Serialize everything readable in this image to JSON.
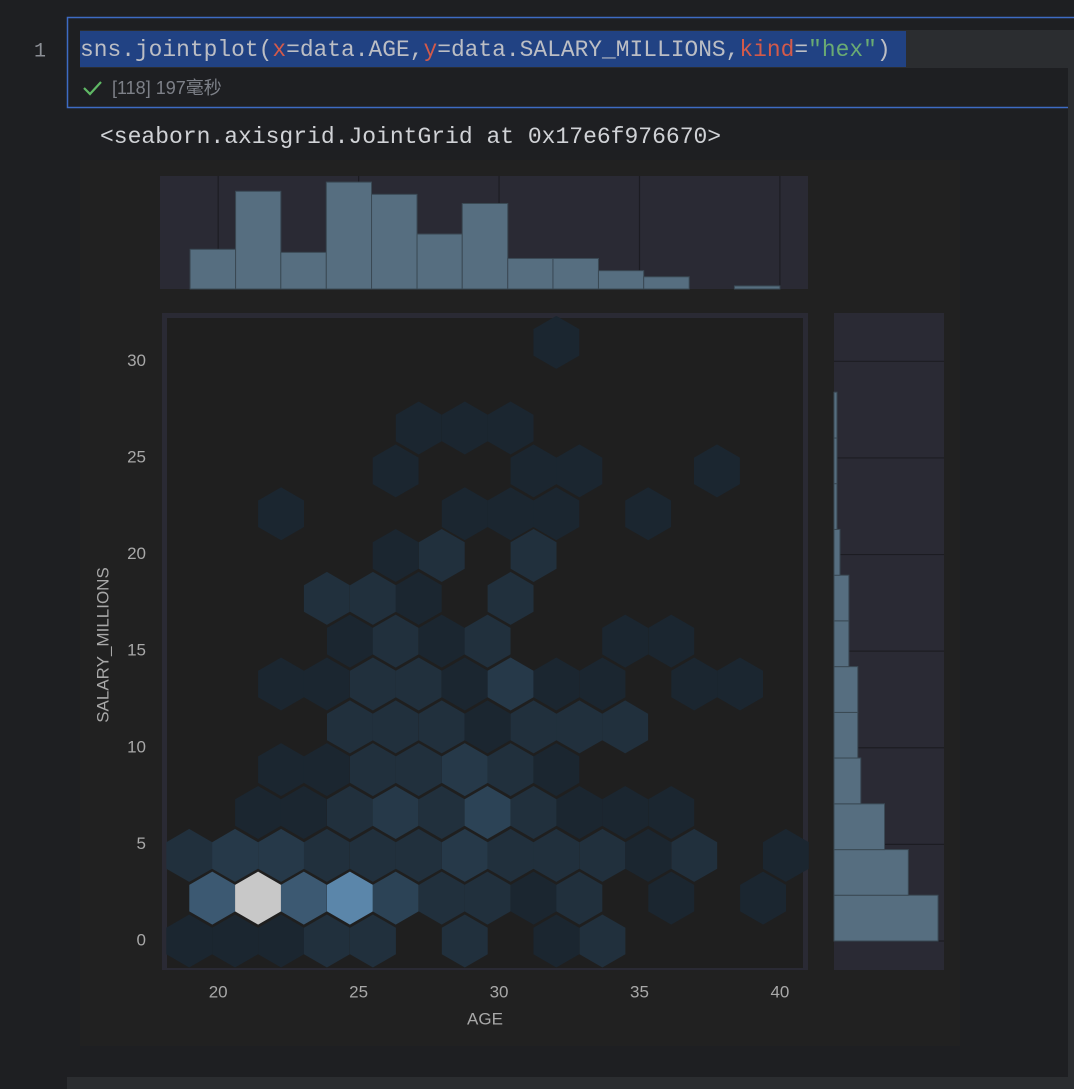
{
  "code": {
    "line_number": "1",
    "tokens": [
      {
        "text": "sns.jointplot(",
        "color": "#bcbec4"
      },
      {
        "text": "x",
        "color": "#d35a4a"
      },
      {
        "text": "=data.AGE,",
        "color": "#bcbec4"
      },
      {
        "text": "y",
        "color": "#d35a4a"
      },
      {
        "text": "=data.SALARY_MILLIONS,",
        "color": "#bcbec4"
      },
      {
        "text": "kind",
        "color": "#d35a4a"
      },
      {
        "text": "=",
        "color": "#bcbec4"
      },
      {
        "text": "\"hex\"",
        "color": "#6aab73"
      },
      {
        "text": ")",
        "color": "#bcbec4"
      }
    ],
    "execution": "[118] 197毫秒"
  },
  "output_text": "<seaborn.axisgrid.JointGrid at 0x17e6f976670>",
  "chart_data": {
    "type": "hexbin",
    "xlabel": "AGE",
    "ylabel": "SALARY_MILLIONS",
    "xlim": [
      18,
      41
    ],
    "ylim": [
      -1.5,
      32.5
    ],
    "xticks": [
      20,
      25,
      30,
      35,
      40
    ],
    "yticks": [
      0,
      5,
      10,
      15,
      20,
      25,
      30
    ],
    "cmap": [
      "#1b2630",
      "#2c4356",
      "#5b86aa",
      "#c8c8c8"
    ],
    "x": [
      18.97,
      20.6,
      22.24,
      23.87,
      25.51,
      28.78,
      32.04,
      33.68,
      19.79,
      21.42,
      23.05,
      24.69,
      26.32,
      27.96,
      29.59,
      31.23,
      32.86,
      36.13,
      39.4,
      18.97,
      20.6,
      22.24,
      23.87,
      25.51,
      27.14,
      28.78,
      30.41,
      32.04,
      33.68,
      35.31,
      36.95,
      40.21,
      21.42,
      23.05,
      24.69,
      26.32,
      27.96,
      29.59,
      31.23,
      32.86,
      34.49,
      36.13,
      22.24,
      23.87,
      25.51,
      27.14,
      28.78,
      30.41,
      32.04,
      24.69,
      26.32,
      27.96,
      29.59,
      31.23,
      32.86,
      34.49,
      22.24,
      23.87,
      25.51,
      27.14,
      28.78,
      30.41,
      32.04,
      33.68,
      36.95,
      38.58,
      24.69,
      26.32,
      27.96,
      29.59,
      34.49,
      36.13,
      23.87,
      25.51,
      27.14,
      30.41,
      26.32,
      27.96,
      31.23,
      22.24,
      28.78,
      30.41,
      32.04,
      35.31,
      26.32,
      31.23,
      32.86,
      37.76,
      27.14,
      28.78,
      30.41,
      32.04
    ],
    "y": [
      0,
      0,
      0,
      0,
      0,
      0,
      0,
      0,
      2.22,
      2.22,
      2.22,
      2.22,
      2.22,
      2.22,
      2.22,
      2.22,
      2.22,
      2.22,
      2.22,
      4.43,
      4.43,
      4.43,
      4.43,
      4.43,
      4.43,
      4.43,
      4.43,
      4.43,
      4.43,
      4.43,
      4.43,
      4.43,
      6.65,
      6.65,
      6.65,
      6.65,
      6.65,
      6.65,
      6.65,
      6.65,
      6.65,
      6.65,
      8.87,
      8.87,
      8.87,
      8.87,
      8.87,
      8.87,
      8.87,
      11.08,
      11.08,
      11.08,
      11.08,
      11.08,
      11.08,
      11.08,
      13.3,
      13.3,
      13.3,
      13.3,
      13.3,
      13.3,
      13.3,
      13.3,
      13.3,
      13.3,
      15.52,
      15.52,
      15.52,
      15.52,
      15.52,
      15.52,
      17.73,
      17.73,
      17.73,
      17.73,
      19.95,
      19.95,
      19.95,
      22.11,
      22.11,
      22.11,
      22.11,
      22.11,
      24.33,
      24.33,
      24.33,
      24.33,
      26.55,
      26.55,
      26.55,
      30.98
    ],
    "values": [
      1,
      1,
      1,
      2,
      2,
      2,
      1,
      2,
      5,
      10,
      5,
      7,
      4,
      2,
      2,
      1,
      2,
      1,
      1,
      2,
      3,
      3,
      2,
      2,
      2,
      3,
      2,
      2,
      2,
      1,
      2,
      1,
      1,
      1,
      2,
      3,
      2,
      4,
      2,
      1,
      1,
      1,
      1,
      1,
      2,
      2,
      3,
      2,
      1,
      2,
      2,
      2,
      1,
      2,
      2,
      2,
      1,
      1,
      2,
      2,
      1,
      3,
      1,
      1,
      1,
      1,
      1,
      2,
      1,
      2,
      1,
      1,
      2,
      2,
      1,
      2,
      1,
      2,
      2,
      1,
      1,
      1,
      1,
      1,
      1,
      1,
      1,
      1,
      1,
      1,
      1,
      1
    ],
    "marginal_x": {
      "type": "histogram",
      "bins": [
        19,
        20.62,
        22.23,
        23.85,
        25.46,
        27.08,
        28.69,
        30.31,
        31.92,
        33.54,
        35.15,
        36.77,
        38.38,
        40
      ],
      "counts": [
        13,
        32,
        12,
        35,
        31,
        18,
        28,
        10,
        10,
        6,
        4,
        0,
        1
      ],
      "ylim": [
        0,
        37
      ],
      "color": "#566e80"
    },
    "marginal_y": {
      "type": "histogram",
      "bins": [
        0,
        2.37,
        4.73,
        7.1,
        9.47,
        11.83,
        14.2,
        16.57,
        18.93,
        21.3,
        23.67,
        26.03,
        28.4
      ],
      "counts": [
        35,
        25,
        17,
        9,
        8,
        8,
        5,
        5,
        2,
        1,
        1,
        1
      ],
      "xlim": [
        0,
        37
      ],
      "color": "#566e80"
    },
    "grid": true
  }
}
